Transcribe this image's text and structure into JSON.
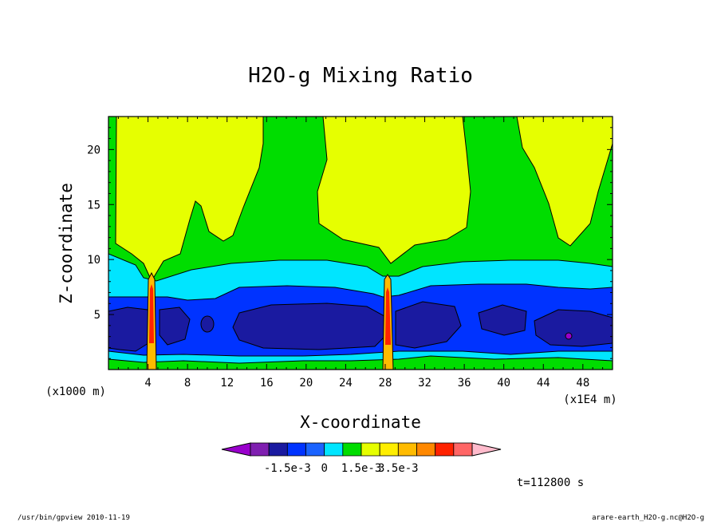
{
  "chart_data": {
    "type": "heatmap",
    "title": "H2O-g Mixing Ratio",
    "xlabel": "X-coordinate",
    "ylabel": "Z-coordinate",
    "x_scale_note": "(x1E4 m)",
    "y_scale_note": "(x1000 m)",
    "xlim": [
      0,
      51
    ],
    "ylim": [
      0,
      23
    ],
    "x_ticks": [
      4,
      8,
      12,
      16,
      20,
      24,
      28,
      32,
      36,
      40,
      44,
      48
    ],
    "y_ticks": [
      5,
      10,
      15,
      20
    ],
    "colorbar": {
      "colors": [
        "#9900cc",
        "#7f1fb0",
        "#1a1aa0",
        "#0033ff",
        "#1a63ff",
        "#00e5ff",
        "#00dd00",
        "#e6ff00",
        "#ffee00",
        "#ffbb00",
        "#ff8800",
        "#ff2200",
        "#ff6666",
        "#ffbbcc"
      ],
      "tick_labels": [
        "-1.5e-3",
        "0",
        "1.5e-3",
        "3.5e-3"
      ]
    },
    "time_label": "t=112800 s"
  },
  "footer": {
    "left": "/usr/bin/gpview  2010-11-19",
    "right": "arare-earth_H2O-g.nc@H2O-g"
  }
}
